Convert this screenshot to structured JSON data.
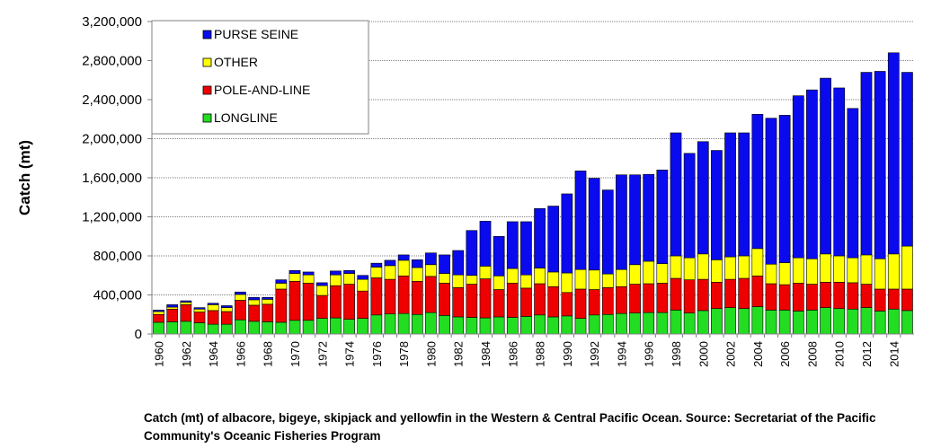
{
  "chart_data": {
    "type": "bar",
    "stacked": true,
    "ylabel": "Catch (mt)",
    "ylim": [
      0,
      3200000
    ],
    "yticks": [
      "0",
      "400,000",
      "800,000",
      "1,200,000",
      "1,600,000",
      "2,000,000",
      "2,400,000",
      "2,800,000",
      "3,200,000"
    ],
    "ytick_values": [
      0,
      400000,
      800000,
      1200000,
      1600000,
      2000000,
      2400000,
      2800000,
      3200000
    ],
    "categories": [
      "1960",
      "1961",
      "1962",
      "1963",
      "1964",
      "1965",
      "1966",
      "1967",
      "1968",
      "1969",
      "1970",
      "1971",
      "1972",
      "1973",
      "1974",
      "1975",
      "1976",
      "1977",
      "1978",
      "1979",
      "1980",
      "1981",
      "1982",
      "1983",
      "1984",
      "1985",
      "1986",
      "1987",
      "1988",
      "1989",
      "1990",
      "1991",
      "1992",
      "1993",
      "1994",
      "1995",
      "1996",
      "1997",
      "1998",
      "1999",
      "2000",
      "2001",
      "2002",
      "2003",
      "2004",
      "2005",
      "2006",
      "2007",
      "2008",
      "2009",
      "2010",
      "2011",
      "2012",
      "2013",
      "2014",
      "2015"
    ],
    "x_tick_labels": [
      "1960",
      "",
      "1962",
      "",
      "1964",
      "",
      "1966",
      "",
      "1968",
      "",
      "1970",
      "",
      "1972",
      "",
      "1974",
      "",
      "1976",
      "",
      "1978",
      "",
      "1980",
      "",
      "1982",
      "",
      "1984",
      "",
      "1986",
      "",
      "1988",
      "",
      "1990",
      "",
      "1992",
      "",
      "1994",
      "",
      "1996",
      "",
      "1998",
      "",
      "2000",
      "",
      "2002",
      "",
      "2004",
      "",
      "2006",
      "",
      "2008",
      "",
      "2010",
      "",
      "2012",
      "",
      "2014",
      ""
    ],
    "grid": "horizontal",
    "legend_position": "top-left",
    "series": [
      {
        "name": "LONGLINE",
        "color": "#22dd22",
        "values": [
          120000,
          125000,
          130000,
          115000,
          100000,
          100000,
          145000,
          130000,
          125000,
          120000,
          140000,
          140000,
          160000,
          165000,
          150000,
          160000,
          195000,
          205000,
          210000,
          200000,
          220000,
          190000,
          175000,
          170000,
          165000,
          175000,
          170000,
          180000,
          195000,
          175000,
          185000,
          160000,
          195000,
          200000,
          210000,
          215000,
          220000,
          220000,
          245000,
          215000,
          240000,
          260000,
          270000,
          260000,
          280000,
          245000,
          245000,
          235000,
          245000,
          270000,
          260000,
          255000,
          270000,
          235000,
          255000,
          240000
        ]
      },
      {
        "name": "POLE-AND-LINE",
        "color": "#ee0000",
        "values": [
          80000,
          130000,
          170000,
          110000,
          140000,
          130000,
          200000,
          165000,
          180000,
          340000,
          400000,
          380000,
          235000,
          330000,
          360000,
          280000,
          380000,
          355000,
          385000,
          340000,
          370000,
          330000,
          300000,
          340000,
          400000,
          280000,
          350000,
          290000,
          320000,
          310000,
          240000,
          300000,
          260000,
          275000,
          275000,
          295000,
          295000,
          300000,
          325000,
          340000,
          320000,
          270000,
          290000,
          310000,
          315000,
          270000,
          260000,
          285000,
          265000,
          260000,
          270000,
          270000,
          240000,
          225000,
          205000,
          220000
        ]
      },
      {
        "name": "OTHER",
        "color": "#ffff00",
        "values": [
          30000,
          20000,
          25000,
          30000,
          60000,
          40000,
          60000,
          55000,
          50000,
          60000,
          80000,
          85000,
          100000,
          110000,
          110000,
          120000,
          110000,
          140000,
          160000,
          140000,
          120000,
          100000,
          130000,
          90000,
          130000,
          140000,
          150000,
          135000,
          160000,
          150000,
          200000,
          200000,
          200000,
          140000,
          175000,
          200000,
          230000,
          200000,
          230000,
          225000,
          260000,
          230000,
          230000,
          230000,
          280000,
          200000,
          225000,
          260000,
          260000,
          290000,
          270000,
          255000,
          300000,
          310000,
          360000,
          440000
        ]
      },
      {
        "name": "PURSE SEINE",
        "color": "#0a0aee",
        "values": [
          15000,
          25000,
          15000,
          15000,
          15000,
          20000,
          25000,
          25000,
          20000,
          35000,
          30000,
          30000,
          30000,
          40000,
          30000,
          40000,
          40000,
          55000,
          55000,
          80000,
          120000,
          190000,
          250000,
          460000,
          460000,
          405000,
          480000,
          545000,
          610000,
          675000,
          810000,
          1010000,
          940000,
          860000,
          970000,
          920000,
          890000,
          960000,
          1260000,
          1070000,
          1150000,
          1120000,
          1270000,
          1260000,
          1375000,
          1495000,
          1510000,
          1660000,
          1730000,
          1800000,
          1720000,
          1530000,
          1870000,
          1920000,
          2060000,
          1780000
        ]
      }
    ]
  }
}
